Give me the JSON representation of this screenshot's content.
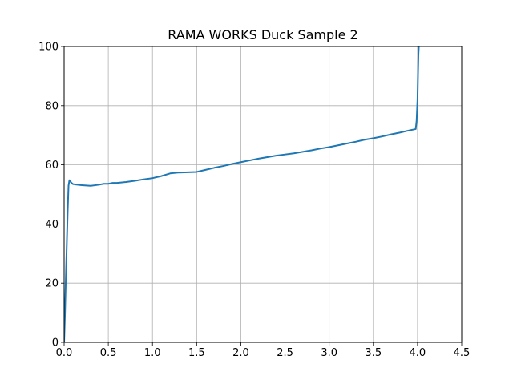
{
  "chart_data": {
    "type": "line",
    "title": "RAMA WORKS Duck Sample 2",
    "xlabel": "",
    "ylabel": "",
    "xlim": [
      0,
      4.5
    ],
    "ylim": [
      0,
      100
    ],
    "xticks": [
      0,
      0.5,
      1.0,
      1.5,
      2.0,
      2.5,
      3.0,
      3.5,
      4.0,
      4.5
    ],
    "xtick_labels": [
      "0.0",
      "0.5",
      "1.0",
      "1.5",
      "2.0",
      "2.5",
      "3.0",
      "3.5",
      "4.0",
      "4.5"
    ],
    "yticks": [
      0,
      20,
      40,
      60,
      80,
      100
    ],
    "ytick_labels": [
      "0",
      "20",
      "40",
      "60",
      "80",
      "100"
    ],
    "grid": true,
    "series": [
      {
        "name": "Duck Sample 2",
        "color": "#1f77b4",
        "x": [
          0.0,
          0.01,
          0.02,
          0.03,
          0.04,
          0.05,
          0.06,
          0.07,
          0.08,
          0.1,
          0.12,
          0.15,
          0.2,
          0.25,
          0.3,
          0.35,
          0.4,
          0.45,
          0.5,
          0.55,
          0.6,
          0.7,
          0.8,
          0.9,
          1.0,
          1.1,
          1.2,
          1.3,
          1.4,
          1.5,
          1.6,
          1.7,
          1.8,
          1.9,
          2.0,
          2.1,
          2.2,
          2.3,
          2.4,
          2.5,
          2.6,
          2.7,
          2.8,
          2.9,
          3.0,
          3.1,
          3.2,
          3.3,
          3.4,
          3.5,
          3.6,
          3.7,
          3.8,
          3.9,
          3.98,
          3.99,
          4.0,
          4.005,
          4.01,
          4.015
        ],
        "y": [
          0.0,
          10.0,
          22.0,
          33.0,
          44.0,
          53.0,
          54.8,
          54.5,
          54.0,
          53.5,
          53.4,
          53.3,
          53.1,
          53.0,
          52.9,
          53.1,
          53.3,
          53.6,
          53.6,
          53.9,
          53.9,
          54.2,
          54.6,
          55.1,
          55.5,
          56.2,
          57.1,
          57.4,
          57.5,
          57.6,
          58.3,
          59.0,
          59.6,
          60.3,
          60.9,
          61.5,
          62.1,
          62.6,
          63.1,
          63.5,
          63.9,
          64.4,
          64.9,
          65.5,
          66.0,
          66.6,
          67.2,
          67.8,
          68.5,
          69.0,
          69.6,
          70.3,
          70.9,
          71.6,
          72.1,
          75.0,
          82.0,
          90.0,
          97.0,
          100.0
        ]
      }
    ]
  }
}
